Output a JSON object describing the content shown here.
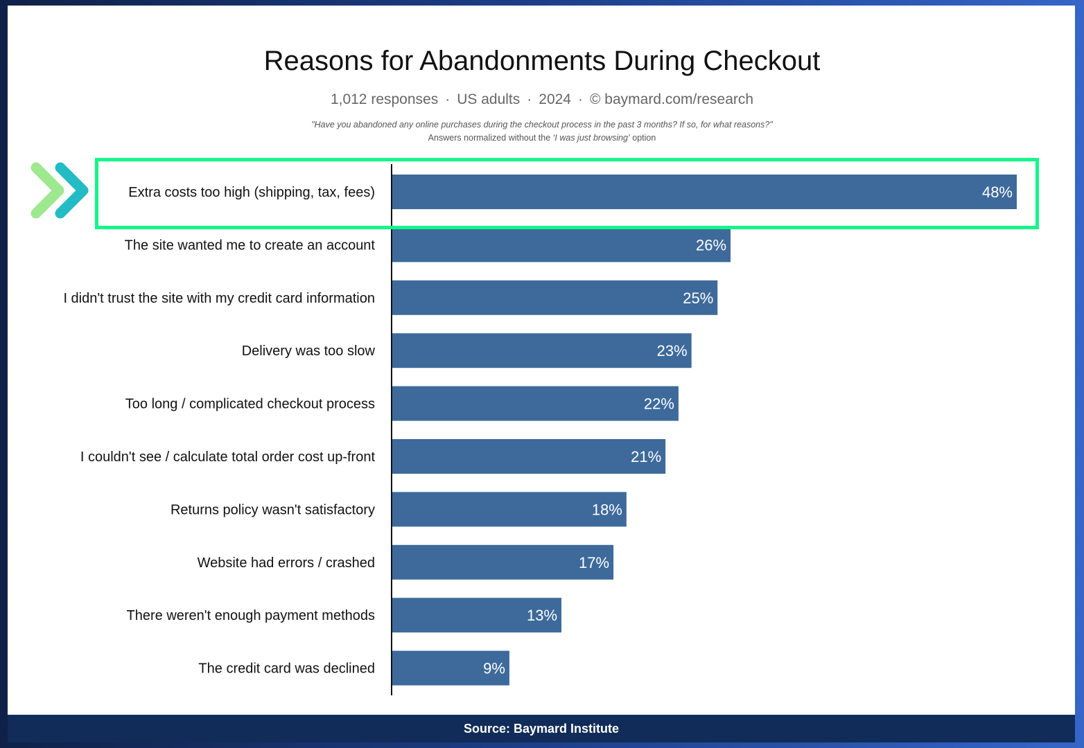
{
  "chart_data": {
    "type": "bar",
    "orientation": "horizontal",
    "title": "Reasons for Abandonments During Checkout",
    "subtitle_parts": [
      "1,012 responses",
      "US adults",
      "2024",
      "© baymard.com/research"
    ],
    "question": "\"Have you abandoned any online purchases during the checkout process in the past 3 months? If so, for what reasons?\"",
    "note_prefix": "Answers normalized without the ",
    "note_em": "‘I was just browsing’",
    "note_suffix": " option",
    "categories": [
      "Extra costs too high (shipping, tax, fees)",
      "The site wanted me to create an account",
      "I didn't trust the site with my credit card information",
      "Delivery was too slow",
      "Too long / complicated checkout process",
      "I couldn't see / calculate total order cost up-front",
      "Returns policy wasn't satisfactory",
      "Website had errors / crashed",
      "There weren't enough payment methods",
      "The credit card was declined"
    ],
    "values": [
      48,
      26,
      25,
      23,
      22,
      21,
      18,
      17,
      13,
      9
    ],
    "value_labels": [
      "48%",
      "26%",
      "25%",
      "23%",
      "22%",
      "21%",
      "18%",
      "17%",
      "13%",
      "9%"
    ],
    "unit": "%",
    "bar_color": "#3d6a9b",
    "highlighted_category": "Extra costs too high (shipping, tax, fees)",
    "highlight_color": "#14f58a"
  },
  "footer": {
    "source": "Source: Baymard Institute"
  }
}
